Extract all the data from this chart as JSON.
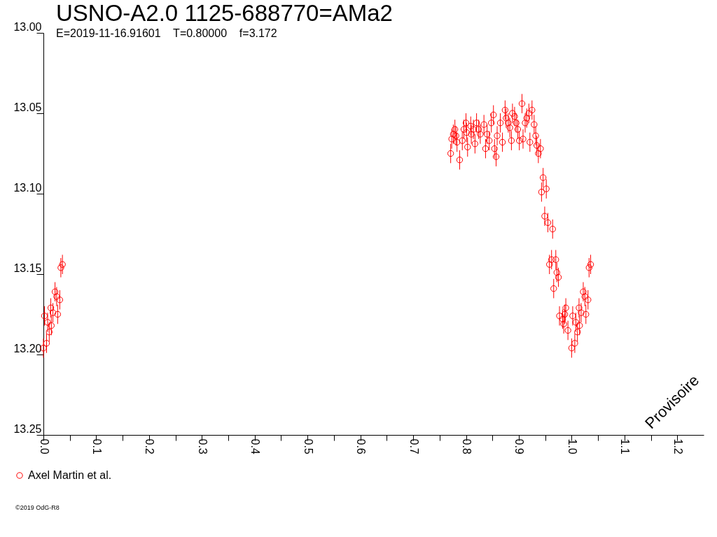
{
  "chart_data": {
    "type": "scatter",
    "title": "USNO-A2.0 1125-688770=AMa2",
    "subtitle": "E=2019-11-16.91601    T=0.80000    f=3.172",
    "x": [
      0.0,
      0.002,
      0.006,
      0.008,
      0.011,
      0.014,
      0.015,
      0.018,
      0.022,
      0.025,
      0.027,
      0.031,
      0.033,
      0.036,
      0.771,
      0.773,
      0.776,
      0.779,
      0.781,
      0.783,
      0.788,
      0.793,
      0.796,
      0.8,
      0.801,
      0.803,
      0.809,
      0.81,
      0.814,
      0.817,
      0.82,
      0.824,
      0.827,
      0.834,
      0.837,
      0.84,
      0.844,
      0.848,
      0.852,
      0.854,
      0.857,
      0.859,
      0.865,
      0.869,
      0.874,
      0.876,
      0.88,
      0.883,
      0.886,
      0.888,
      0.892,
      0.895,
      0.898,
      0.901,
      0.906,
      0.908,
      0.912,
      0.915,
      0.919,
      0.921,
      0.925,
      0.929,
      0.932,
      0.934,
      0.937,
      0.941,
      0.943,
      0.946,
      0.949,
      0.952,
      0.955,
      0.958,
      0.962,
      0.964,
      0.966,
      0.97,
      0.972,
      0.975,
      0.977,
      0.983,
      0.985,
      0.987,
      0.989,
      0.993,
      1.0,
      1.002,
      1.006,
      1.008,
      1.011,
      1.014,
      1.015,
      1.018,
      1.022,
      1.025,
      1.027,
      1.031,
      1.033,
      1.036
    ],
    "series": [
      {
        "name": "Axel Martin et al.",
        "color": "#ff0000",
        "values": [
          13.196,
          13.176,
          13.193,
          13.18,
          13.186,
          13.171,
          13.182,
          13.174,
          13.161,
          13.164,
          13.175,
          13.166,
          13.146,
          13.144,
          13.075,
          13.066,
          13.063,
          13.06,
          13.064,
          13.068,
          13.079,
          13.067,
          13.06,
          13.056,
          13.062,
          13.071,
          13.058,
          13.063,
          13.06,
          13.069,
          13.056,
          13.06,
          13.063,
          13.057,
          13.072,
          13.063,
          13.067,
          13.056,
          13.051,
          13.072,
          13.077,
          13.064,
          13.056,
          13.068,
          13.048,
          13.053,
          13.056,
          13.059,
          13.067,
          13.05,
          13.052,
          13.056,
          13.06,
          13.067,
          13.044,
          13.066,
          13.056,
          13.053,
          13.05,
          13.068,
          13.048,
          13.057,
          13.064,
          13.07,
          13.075,
          13.072,
          13.099,
          13.09,
          13.114,
          13.097,
          13.118,
          13.144,
          13.141,
          13.122,
          13.159,
          13.141,
          13.149,
          13.152,
          13.176,
          13.178,
          13.181,
          13.175,
          13.171,
          13.185,
          13.196,
          13.176,
          13.193,
          13.18,
          13.186,
          13.171,
          13.182,
          13.174,
          13.161,
          13.164,
          13.175,
          13.166,
          13.146,
          13.144
        ],
        "errors": [
          0.006,
          0.006,
          0.006,
          0.006,
          0.006,
          0.006,
          0.006,
          0.006,
          0.006,
          0.006,
          0.006,
          0.006,
          0.006,
          0.006,
          0.006,
          0.006,
          0.006,
          0.006,
          0.006,
          0.006,
          0.006,
          0.006,
          0.006,
          0.006,
          0.006,
          0.006,
          0.006,
          0.006,
          0.006,
          0.006,
          0.006,
          0.006,
          0.006,
          0.006,
          0.006,
          0.006,
          0.006,
          0.006,
          0.006,
          0.006,
          0.006,
          0.006,
          0.006,
          0.006,
          0.006,
          0.006,
          0.006,
          0.006,
          0.006,
          0.006,
          0.006,
          0.006,
          0.006,
          0.006,
          0.006,
          0.006,
          0.006,
          0.006,
          0.006,
          0.006,
          0.006,
          0.006,
          0.006,
          0.006,
          0.006,
          0.006,
          0.006,
          0.006,
          0.006,
          0.006,
          0.006,
          0.006,
          0.006,
          0.006,
          0.006,
          0.006,
          0.006,
          0.006,
          0.006,
          0.006,
          0.006,
          0.006,
          0.006,
          0.006,
          0.006,
          0.006,
          0.006,
          0.006,
          0.006,
          0.006,
          0.006,
          0.006,
          0.006,
          0.006,
          0.006,
          0.006,
          0.006,
          0.006
        ]
      }
    ],
    "xlim": [
      0,
      1.25
    ],
    "xticks": [
      {
        "value": 0,
        "label": "0.0"
      },
      {
        "value": 0.05,
        "label": null
      },
      0.1,
      {
        "value": 0.15,
        "label": null
      },
      0.2,
      {
        "value": 0.25,
        "label": null
      },
      0.3,
      {
        "value": 0.35,
        "label": null
      },
      0.4,
      {
        "value": 0.45,
        "label": null
      },
      0.5,
      {
        "value": 0.55,
        "label": null
      },
      0.6,
      {
        "value": 0.65,
        "label": null
      },
      0.7,
      {
        "value": 0.75,
        "label": null
      },
      0.8,
      {
        "value": 0.85,
        "label": null
      },
      0.9,
      {
        "value": 0.95,
        "label": null
      },
      {
        "value": 1,
        "label": "1.0"
      },
      {
        "value": 1.05,
        "label": null
      },
      1.1,
      {
        "value": 1.15,
        "label": null
      },
      1.2
    ],
    "ylim": [
      13.25,
      13.0
    ],
    "yticks": [
      {
        "value": 13,
        "label": "13.00"
      },
      13.05,
      {
        "value": 13.1,
        "label": "13.10"
      },
      13.15,
      {
        "value": 13.2,
        "label": "13.20"
      },
      13.25
    ],
    "marker": "circle",
    "legend": "bottom left",
    "annotations": [
      "Provisoire",
      "©2019 OdG-R8"
    ]
  }
}
